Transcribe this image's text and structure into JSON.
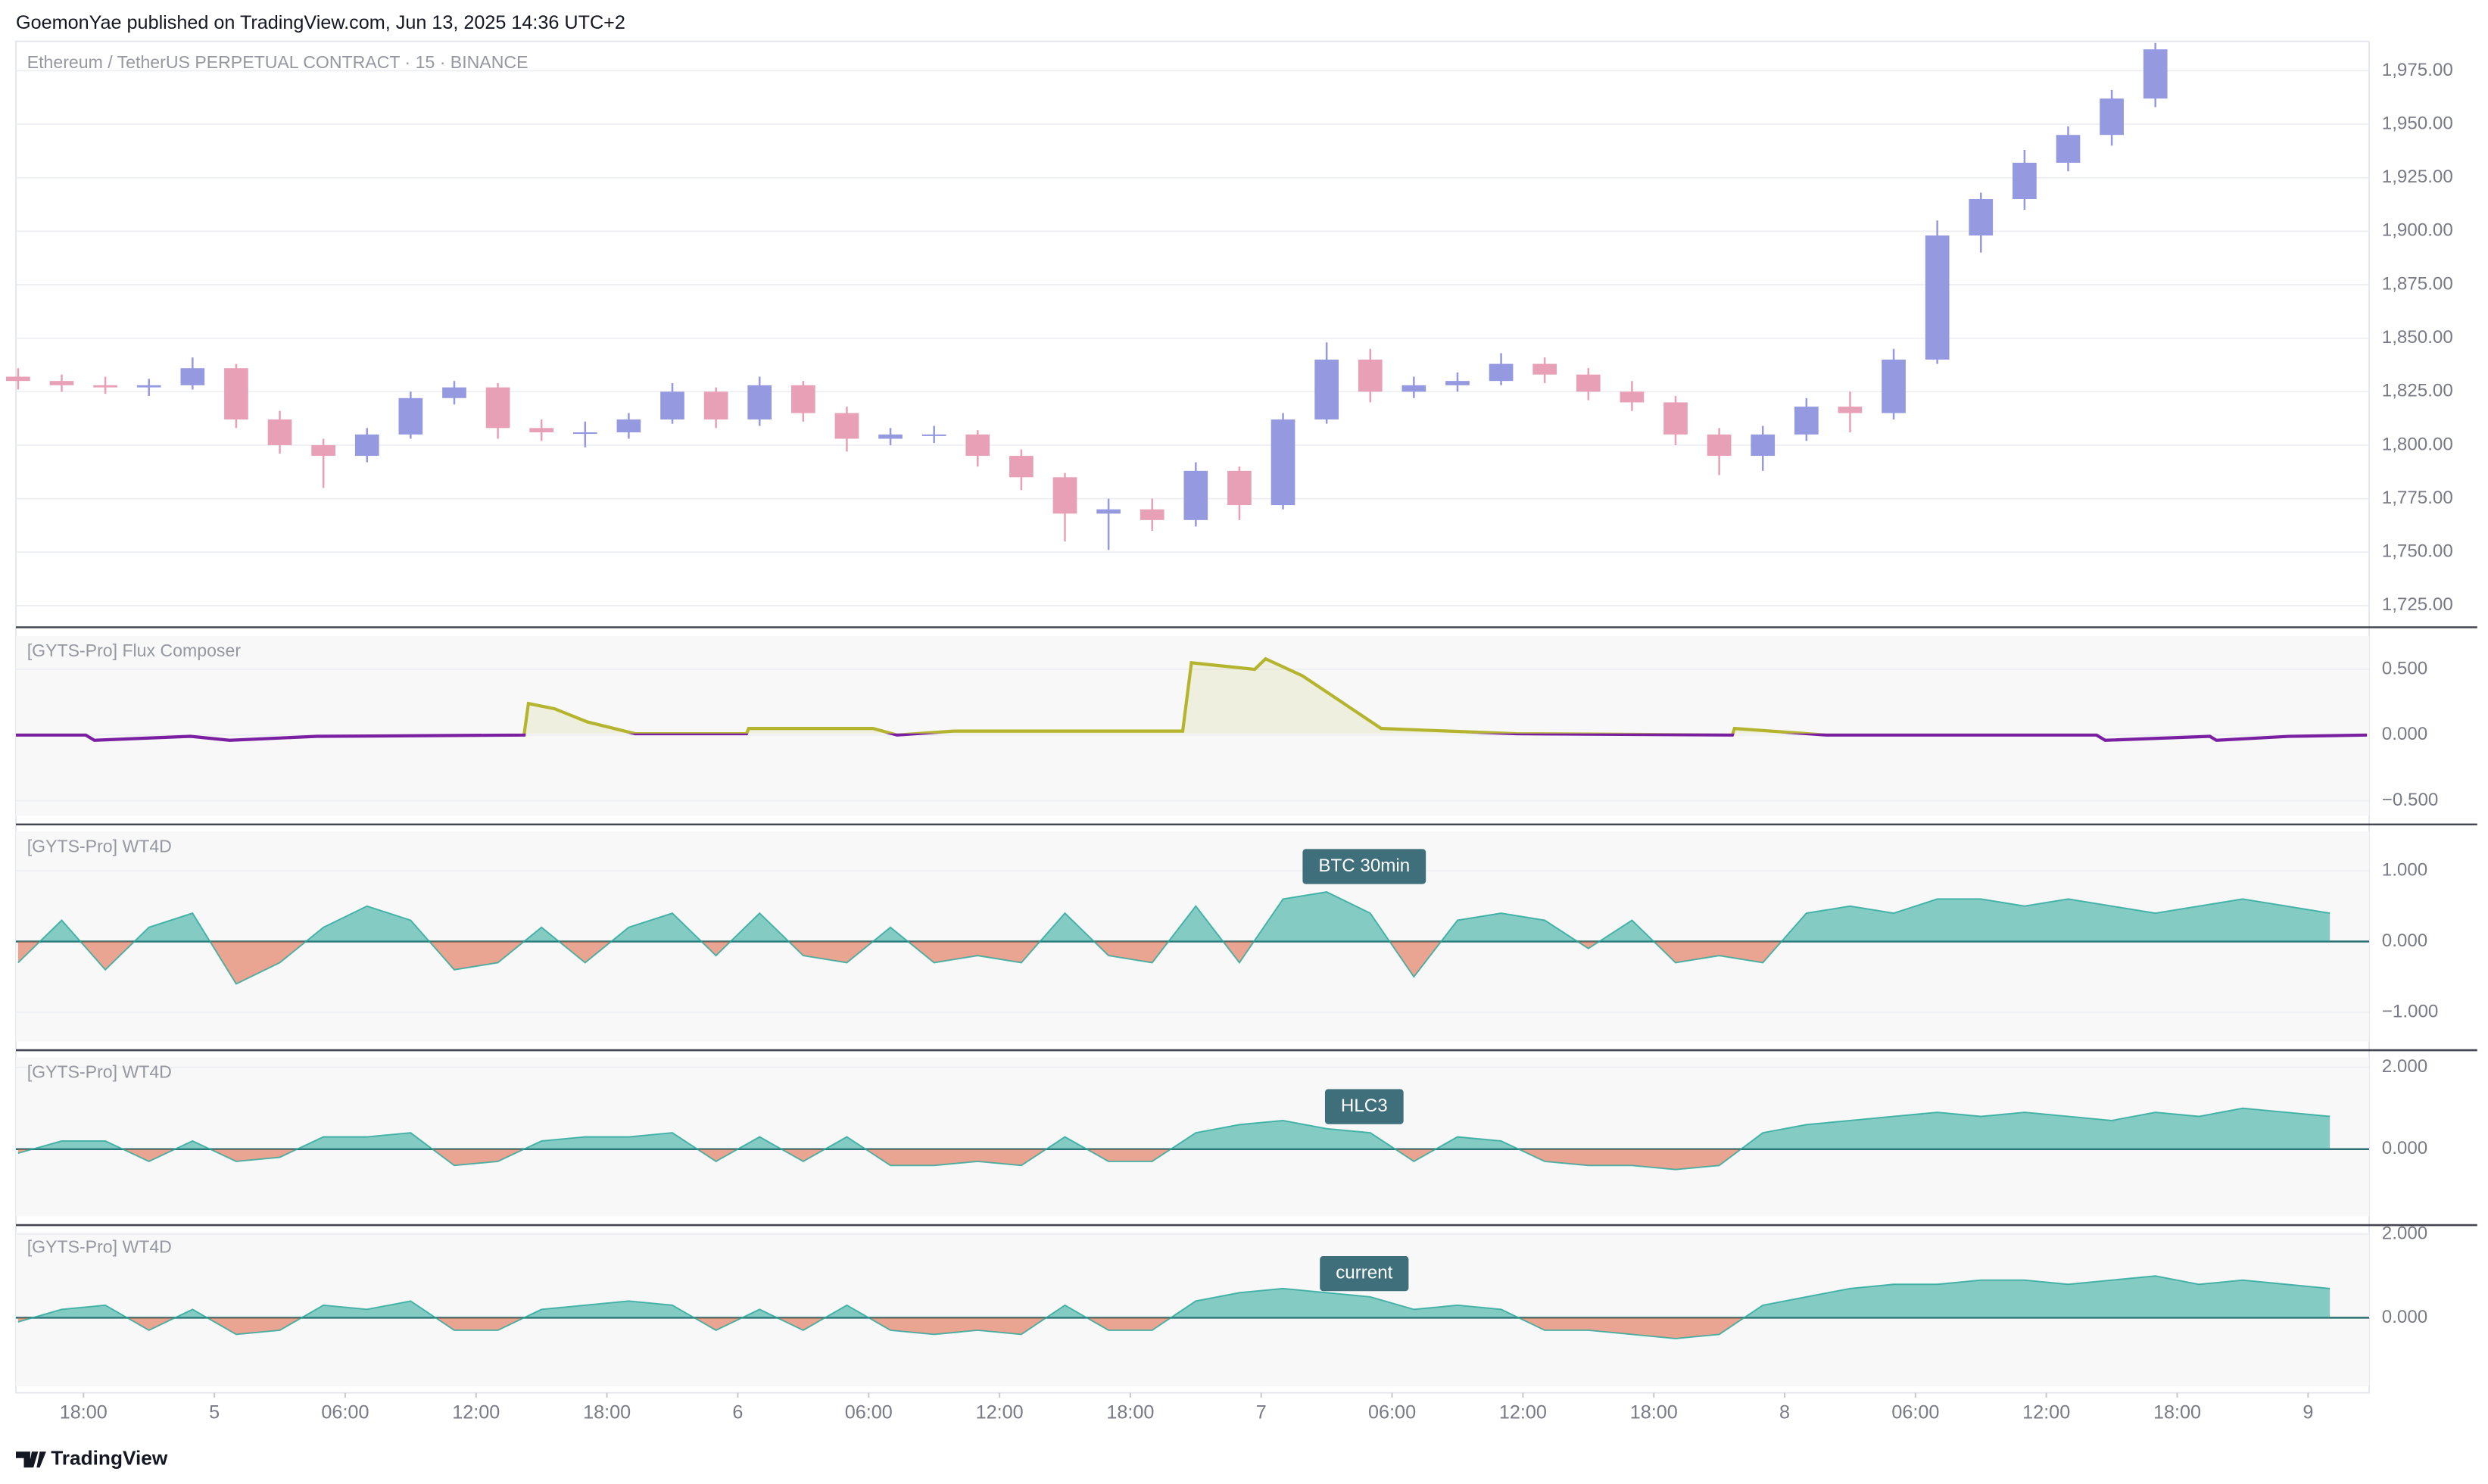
{
  "header": "GoemonYae published on TradingView.com, Jun 13, 2025 14:36 UTC+2",
  "footer": "TradingView",
  "chart_data": [
    {
      "type": "candlestick",
      "title": "Ethereum / TetherUS PERPETUAL CONTRACT · 15 · BINANCE",
      "up_color": "#9599e0",
      "down_color": "#e8a0b6",
      "x": [
        -3,
        -1,
        1,
        3,
        5,
        7,
        9,
        11,
        13,
        15,
        17,
        19,
        21,
        23,
        25,
        27,
        29,
        31,
        33,
        35,
        37,
        39,
        41,
        43,
        45,
        47,
        49,
        51,
        53,
        55,
        57,
        59,
        61,
        63,
        65,
        67,
        69,
        71,
        73,
        75,
        77,
        79,
        81,
        83,
        85,
        87,
        89,
        91,
        93,
        95
      ],
      "open": [
        1832,
        1830,
        1828,
        1827,
        1828,
        1836,
        1812,
        1800,
        1795,
        1805,
        1822,
        1827,
        1808,
        1806,
        1806,
        1812,
        1825,
        1812,
        1828,
        1815,
        1803,
        1805,
        1805,
        1795,
        1785,
        1768,
        1770,
        1765,
        1788,
        1772,
        1812,
        1840,
        1825,
        1828,
        1830,
        1838,
        1833,
        1825,
        1820,
        1805,
        1795,
        1805,
        1818,
        1815,
        1840,
        1898,
        1915,
        1932,
        1945,
        1962
      ],
      "high": [
        1836,
        1833,
        1832,
        1831,
        1841,
        1838,
        1816,
        1803,
        1808,
        1825,
        1830,
        1829,
        1812,
        1811,
        1815,
        1829,
        1827,
        1832,
        1830,
        1818,
        1808,
        1809,
        1807,
        1798,
        1787,
        1775,
        1775,
        1792,
        1790,
        1815,
        1848,
        1845,
        1832,
        1834,
        1843,
        1841,
        1836,
        1830,
        1823,
        1808,
        1809,
        1822,
        1825,
        1845,
        1905,
        1918,
        1938,
        1949,
        1966,
        1988
      ],
      "low": [
        1826,
        1825,
        1824,
        1823,
        1826,
        1808,
        1796,
        1780,
        1792,
        1803,
        1819,
        1803,
        1802,
        1799,
        1803,
        1810,
        1808,
        1809,
        1811,
        1797,
        1800,
        1801,
        1790,
        1779,
        1755,
        1751,
        1760,
        1762,
        1765,
        1770,
        1810,
        1820,
        1822,
        1825,
        1828,
        1829,
        1821,
        1816,
        1800,
        1786,
        1788,
        1802,
        1806,
        1812,
        1838,
        1890,
        1910,
        1928,
        1940,
        1958
      ],
      "close": [
        1830,
        1828,
        1827,
        1828,
        1836,
        1812,
        1800,
        1795,
        1805,
        1822,
        1827,
        1808,
        1806,
        1806,
        1812,
        1825,
        1812,
        1828,
        1815,
        1803,
        1805,
        1805,
        1795,
        1785,
        1768,
        1770,
        1765,
        1788,
        1772,
        1812,
        1840,
        1825,
        1828,
        1830,
        1838,
        1833,
        1825,
        1820,
        1805,
        1795,
        1805,
        1818,
        1815,
        1840,
        1898,
        1915,
        1932,
        1945,
        1962,
        1985
      ],
      "xlim": [
        -3.1,
        104.8
      ],
      "ylim": [
        1716,
        1988
      ],
      "yticks": [
        {
          "value": 1725,
          "label": "1,725.00"
        },
        {
          "value": 1750,
          "label": "1,750.00"
        },
        {
          "value": 1775,
          "label": "1,775.00"
        },
        {
          "value": 1800,
          "label": "1,800.00"
        },
        {
          "value": 1825,
          "label": "1,825.00"
        },
        {
          "value": 1850,
          "label": "1,850.00"
        },
        {
          "value": 1875,
          "label": "1,875.00"
        },
        {
          "value": 1900,
          "label": "1,900.00"
        },
        {
          "value": 1925,
          "label": "1,925.00"
        },
        {
          "value": 1950,
          "label": "1,950.00"
        },
        {
          "value": 1975,
          "label": "1,975.00"
        }
      ],
      "grid": true
    },
    {
      "type": "line",
      "title": "[GYTS-Pro] Flux Composer",
      "positive_color": "#b5b42f",
      "negative_color": "#7b1fa2",
      "x": [
        -3.1,
        0.1,
        0.5,
        4.9,
        6.7,
        10.7,
        20.2,
        20.4,
        21.6,
        23.1,
        25.3,
        30.4,
        30.5,
        36.2,
        37.3,
        39.9,
        50.4,
        50.8,
        53.7,
        54.2,
        55.9,
        57.7,
        59.5,
        65.7,
        75.6,
        75.7,
        79.9,
        92.3,
        92.7,
        97.5,
        97.8,
        101.1,
        104.7
      ],
      "values": [
        0,
        0,
        -0.04,
        -0.01,
        -0.04,
        -0.01,
        0,
        0.24,
        0.2,
        0.1,
        0.01,
        0.01,
        0.05,
        0.05,
        0,
        0.03,
        0.03,
        0.55,
        0.5,
        0.58,
        0.45,
        0.25,
        0.05,
        0.01,
        0,
        0.05,
        0,
        0,
        -0.04,
        -0.01,
        -0.04,
        -0.01,
        0
      ],
      "xlim": [
        -3.1,
        104.8
      ],
      "ylim": [
        -0.65,
        0.79
      ],
      "yticks": [
        {
          "value": 0.5,
          "label": "0.500"
        },
        {
          "value": 0,
          "label": "0.000"
        },
        {
          "value": -0.5,
          "label": "−0.500"
        }
      ],
      "grid": true
    },
    {
      "type": "area",
      "title": "[GYTS-Pro] WT4D",
      "annotation": "BTC 30min",
      "positive_color": "#26a69a",
      "negative_color": "#e0603f",
      "x": [
        -3,
        -1,
        1,
        3,
        5,
        7,
        9,
        11,
        13,
        15,
        17,
        19,
        21,
        23,
        25,
        27,
        29,
        31,
        33,
        35,
        37,
        39,
        41,
        43,
        45,
        47,
        49,
        51,
        53,
        55,
        57,
        59,
        61,
        63,
        65,
        67,
        69,
        71,
        73,
        75,
        77,
        79,
        81,
        83,
        85,
        87,
        89,
        91,
        93,
        95,
        97,
        99,
        101,
        103
      ],
      "values": [
        -0.3,
        0.3,
        -0.4,
        0.2,
        0.4,
        -0.6,
        -0.3,
        0.2,
        0.5,
        0.3,
        -0.4,
        -0.3,
        0.2,
        -0.3,
        0.2,
        0.4,
        -0.2,
        0.4,
        -0.2,
        -0.3,
        0.2,
        -0.3,
        -0.2,
        -0.3,
        0.4,
        -0.2,
        -0.3,
        0.5,
        -0.3,
        0.6,
        0.7,
        0.4,
        -0.5,
        0.3,
        0.4,
        0.3,
        -0.1,
        0.3,
        -0.3,
        -0.2,
        -0.3,
        0.4,
        0.5,
        0.4,
        0.6,
        0.6,
        0.5,
        0.6,
        0.5,
        0.4,
        0.5,
        0.6,
        0.5,
        0.4
      ],
      "xlim": [
        -3.1,
        104.8
      ],
      "ylim": [
        -1.48,
        1.62
      ],
      "yticks": [
        {
          "value": 1,
          "label": "1.000"
        },
        {
          "value": 0,
          "label": "0.000"
        },
        {
          "value": -1,
          "label": "−1.000"
        }
      ],
      "grid": true
    },
    {
      "type": "area",
      "title": "[GYTS-Pro] WT4D",
      "annotation": "HLC3",
      "positive_color": "#26a69a",
      "negative_color": "#e0603f",
      "x": [
        -3,
        -1,
        1,
        3,
        5,
        7,
        9,
        11,
        13,
        15,
        17,
        19,
        21,
        23,
        25,
        27,
        29,
        31,
        33,
        35,
        37,
        39,
        41,
        43,
        45,
        47,
        49,
        51,
        53,
        55,
        57,
        59,
        61,
        63,
        65,
        67,
        69,
        71,
        73,
        75,
        77,
        79,
        81,
        83,
        85,
        87,
        89,
        91,
        93,
        95,
        97,
        99,
        101,
        103
      ],
      "values": [
        -0.1,
        0.2,
        0.2,
        -0.3,
        0.2,
        -0.3,
        -0.2,
        0.3,
        0.3,
        0.4,
        -0.4,
        -0.3,
        0.2,
        0.3,
        0.3,
        0.4,
        -0.3,
        0.3,
        -0.3,
        0.3,
        -0.4,
        -0.4,
        -0.3,
        -0.4,
        0.3,
        -0.3,
        -0.3,
        0.4,
        0.6,
        0.7,
        0.5,
        0.4,
        -0.3,
        0.3,
        0.2,
        -0.3,
        -0.4,
        -0.4,
        -0.5,
        -0.4,
        0.4,
        0.6,
        0.7,
        0.8,
        0.9,
        0.8,
        0.9,
        0.8,
        0.7,
        0.9,
        0.8,
        1.0,
        0.9,
        0.8
      ],
      "xlim": [
        -3.1,
        104.8
      ],
      "ylim": [
        -1.76,
        2.36
      ],
      "yticks": [
        {
          "value": 2,
          "label": "2.000"
        },
        {
          "value": 0,
          "label": "0.000"
        }
      ],
      "grid": true
    },
    {
      "type": "area",
      "title": "[GYTS-Pro] WT4D",
      "annotation": "current",
      "positive_color": "#26a69a",
      "negative_color": "#e0603f",
      "x": [
        -3,
        -1,
        1,
        3,
        5,
        7,
        9,
        11,
        13,
        15,
        17,
        19,
        21,
        23,
        25,
        27,
        29,
        31,
        33,
        35,
        37,
        39,
        41,
        43,
        45,
        47,
        49,
        51,
        53,
        55,
        57,
        59,
        61,
        63,
        65,
        67,
        69,
        71,
        73,
        75,
        77,
        79,
        81,
        83,
        85,
        87,
        89,
        91,
        93,
        95,
        97,
        99,
        101,
        103
      ],
      "values": [
        -0.1,
        0.2,
        0.3,
        -0.3,
        0.2,
        -0.4,
        -0.3,
        0.3,
        0.2,
        0.4,
        -0.3,
        -0.3,
        0.2,
        0.3,
        0.4,
        0.3,
        -0.3,
        0.2,
        -0.3,
        0.3,
        -0.3,
        -0.4,
        -0.3,
        -0.4,
        0.3,
        -0.3,
        -0.3,
        0.4,
        0.6,
        0.7,
        0.6,
        0.5,
        0.2,
        0.3,
        0.2,
        -0.3,
        -0.3,
        -0.4,
        -0.5,
        -0.4,
        0.3,
        0.5,
        0.7,
        0.8,
        0.8,
        0.9,
        0.9,
        0.8,
        0.9,
        1.0,
        0.8,
        0.9,
        0.8,
        0.7
      ],
      "xlim": [
        -3.1,
        104.8
      ],
      "ylim": [
        -1.76,
        2.16
      ],
      "yticks": [
        {
          "value": 2,
          "label": "2.000"
        },
        {
          "value": 0,
          "label": "0.000"
        }
      ],
      "xticks": [
        {
          "value": 0,
          "label": "18:00"
        },
        {
          "value": 6,
          "label": "5"
        },
        {
          "value": 12,
          "label": "06:00"
        },
        {
          "value": 18,
          "label": "12:00"
        },
        {
          "value": 24,
          "label": "18:00"
        },
        {
          "value": 30,
          "label": "6"
        },
        {
          "value": 36,
          "label": "06:00"
        },
        {
          "value": 42,
          "label": "12:00"
        },
        {
          "value": 48,
          "label": "18:00"
        },
        {
          "value": 54,
          "label": "7"
        },
        {
          "value": 60,
          "label": "06:00"
        },
        {
          "value": 66,
          "label": "12:00"
        },
        {
          "value": 72,
          "label": "18:00"
        },
        {
          "value": 78,
          "label": "8"
        },
        {
          "value": 84,
          "label": "06:00"
        },
        {
          "value": 90,
          "label": "12:00"
        },
        {
          "value": 96,
          "label": "18:00"
        },
        {
          "value": 102,
          "label": "9"
        }
      ],
      "grid": true
    }
  ]
}
